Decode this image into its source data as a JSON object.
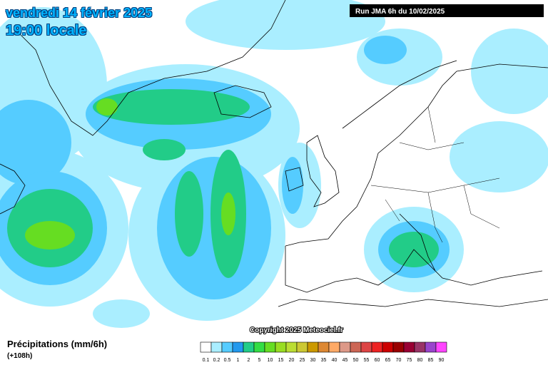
{
  "header": {
    "date": "vendredi 14 février 2025",
    "time": "19:00 locale"
  },
  "run": "Run JMA 6h du 10/02/2025",
  "copyright": "Copyright 2025 Meteociel.fr",
  "legend": {
    "title": "Précipitations (mm/6h)",
    "lead_time": "(+108h)",
    "labels": [
      "0.1",
      "0.2",
      "0.5",
      "1",
      "2",
      "5",
      "10",
      "15",
      "20",
      "25",
      "30",
      "35",
      "40",
      "45",
      "50",
      "55",
      "60",
      "65",
      "70",
      "75",
      "80",
      "85",
      "90"
    ],
    "colors": [
      "#ffffff",
      "#aaeeff",
      "#55ccff",
      "#2299ee",
      "#22cc88",
      "#33dd44",
      "#66dd22",
      "#99dd22",
      "#bbdd33",
      "#ccc833",
      "#cc9900",
      "#dd8833",
      "#ffaa66",
      "#dd9988",
      "#cc6655",
      "#dd4444",
      "#ee2222",
      "#cc0000",
      "#990000",
      "#990033",
      "#993366",
      "#9944cc",
      "#ff44ff"
    ]
  }
}
